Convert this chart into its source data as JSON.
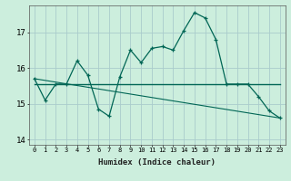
{
  "xlabel": "Humidex (Indice chaleur)",
  "background_color": "#cceedd",
  "line_color": "#006655",
  "grid_color": "#aacccc",
  "xlim": [
    -0.5,
    23.5
  ],
  "ylim": [
    13.85,
    17.75
  ],
  "yticks": [
    14,
    15,
    16,
    17
  ],
  "xticks": [
    0,
    1,
    2,
    3,
    4,
    5,
    6,
    7,
    8,
    9,
    10,
    11,
    12,
    13,
    14,
    15,
    16,
    17,
    18,
    19,
    20,
    21,
    22,
    23
  ],
  "series1_x": [
    0,
    1,
    2,
    3,
    4,
    5,
    6,
    7,
    8,
    9,
    10,
    11,
    12,
    13,
    14,
    15,
    16,
    17,
    18,
    19,
    20,
    21,
    22,
    23
  ],
  "series1_y": [
    15.7,
    15.1,
    15.55,
    15.55,
    16.2,
    15.8,
    14.85,
    14.65,
    15.75,
    16.5,
    16.15,
    16.55,
    16.6,
    16.5,
    17.05,
    17.55,
    17.4,
    16.8,
    15.55,
    15.55,
    15.55,
    15.2,
    14.8,
    14.6
  ],
  "series2_x": [
    0,
    23
  ],
  "series2_y": [
    15.55,
    15.55
  ],
  "series3_x": [
    0,
    23
  ],
  "series3_y": [
    15.7,
    14.6
  ]
}
